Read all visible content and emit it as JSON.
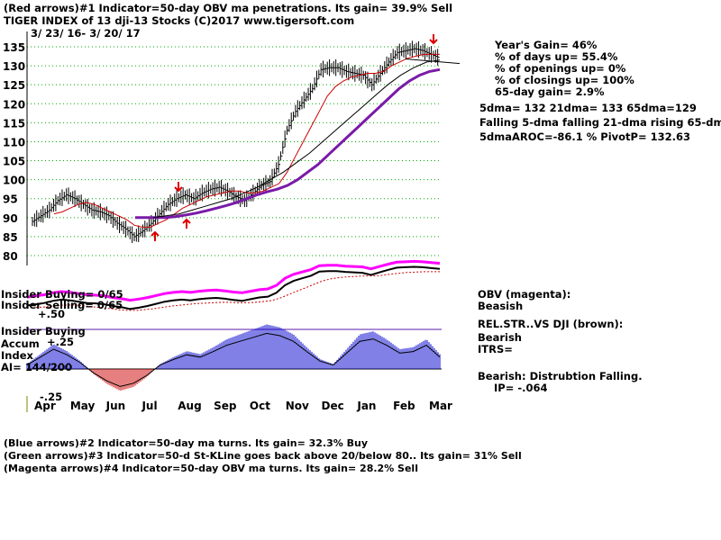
{
  "header": {
    "line1": "(Red arrows)#1 Indicator=50-day OBV ma penetrations. Its gain= 39.9% Sell",
    "line2": "TIGER INDEX of  13 dji-13 Stocks  (C)2017  www.tigersoft.com",
    "date_range": "3/ 23/ 16-  3/ 20/ 17"
  },
  "stats": {
    "years_gain": "Year's Gain= 46%",
    "days_up": "% of days up= 55.4%",
    "openings_up": "% of openings up= 0%",
    "closings_up": "% of closings up= 100%",
    "gain65": "65-day gain= 2.9%",
    "ma_values": "5dma= 132 21dma= 133 65dma=129",
    "ma_trend": "Falling 5-dma falling 21-dma rising 65-dma",
    "aroc": "5dmaAROC=-86.1 %  PivotP= 132.63"
  },
  "left_labels": {
    "insider_buying": "Insider Buying= 0/65",
    "insider_selling": "Insider Selling= 0/65",
    "plus50": "+.50",
    "insider_buying2": "Insider Buying",
    "accum": "Accum",
    "plus25": "+.25",
    "index": "Index",
    "ai": "AI= 144/200",
    "minus25": "-.25"
  },
  "right_labels": {
    "obv": "OBV (magenta):",
    "obv_status": "Beasish",
    "relstr": "REL.STR..VS DJI (brown):",
    "relstr_status": "Bearish",
    "itrs": "ITRS=",
    "bearish_dist": "Bearish: Distrubtion Falling.",
    "ip": "IP= -.064"
  },
  "footer": {
    "line1": "(Blue arrows)#2 Indicator=50-day ma turns. Its gain= 32.3% Buy",
    "line2": "(Green arrows)#3 Indicator=50-d St-KLine goes back above 20/below 80.. Its gain= 31% Sell",
    "line3": "(Magenta arrows)#4 Indicator=50-day OBV ma turns. Its gain= 28.2% Sell"
  },
  "colors": {
    "price": "#000000",
    "ma21": "#cc0000",
    "ma65": "#7a1aa8",
    "obv": "#ff00ff",
    "relstr": "#000000",
    "accum_pos": "#0000cc",
    "accum_neg": "#cc0000",
    "grid": "#00aa00",
    "arrow": "#dd0000"
  },
  "chart_data": {
    "type": "line",
    "y_ticks": [
      135,
      130,
      125,
      120,
      115,
      110,
      105,
      100,
      95,
      90,
      85,
      80
    ],
    "ylim": [
      80,
      135
    ],
    "x_labels": [
      "Apr",
      "May",
      "Jun",
      "Jul",
      "Aug",
      "Sep",
      "Oct",
      "Nov",
      "Dec",
      "Jan",
      "Feb",
      "Mar"
    ],
    "x_index": [
      0,
      1,
      2,
      3,
      4,
      5,
      6,
      7,
      8,
      9,
      10,
      11,
      12,
      13,
      14,
      15,
      16,
      17,
      18,
      19,
      20,
      21,
      22,
      23,
      24,
      25,
      26,
      27,
      28,
      29,
      30,
      31,
      32,
      33,
      34,
      35,
      36,
      37,
      38,
      39,
      40,
      41,
      42,
      43,
      44,
      45,
      46,
      47,
      48
    ],
    "series": [
      {
        "values": [
          89,
          90.5,
          92,
          94.5,
          96,
          95,
          93.5,
          92,
          91.5,
          90.5,
          88.5,
          87,
          85,
          86.5,
          88.5,
          91,
          93.5,
          95,
          96,
          95,
          96.5,
          97.5,
          98,
          97,
          95.5,
          94.5,
          96.5,
          98.5,
          99.5,
          104,
          113,
          118,
          121,
          124,
          129,
          129.5,
          129.5,
          128.5,
          128,
          127.5,
          125,
          128,
          131,
          133.5,
          134,
          134.5,
          134,
          133,
          132
        ]
      },
      {
        "values": [
          91,
          91.5,
          92.5,
          93.5,
          94,
          93.5,
          92.5,
          91.5,
          90.5,
          89.5,
          88,
          87.5,
          87.5,
          88.5,
          89.5,
          91,
          92.5,
          93.5,
          94.5,
          95.5,
          96,
          96.5,
          97,
          97,
          96.5,
          96.5,
          97,
          98,
          99,
          102,
          106,
          110,
          114,
          118,
          122,
          124.5,
          126,
          127,
          127.5,
          128,
          128,
          128.5,
          130,
          131,
          132,
          132.5,
          133,
          133,
          133
        ]
      },
      {
        "values": [
          90,
          90,
          90,
          90,
          90.3,
          90.7,
          91.2,
          91.8,
          92.5,
          93.2,
          94,
          95,
          96,
          96.8,
          97.5,
          98.5,
          100,
          102,
          104,
          106.5,
          109,
          111.5,
          114,
          116.5,
          119,
          121.5,
          124,
          126,
          127.5,
          128.5,
          129
        ]
      },
      {
        "values": [
          90,
          90.5,
          91,
          92,
          93,
          94,
          95,
          96.5,
          98,
          100,
          102,
          104.5,
          107,
          110,
          113,
          116,
          119,
          122,
          125,
          127.5,
          129.5,
          131,
          131.5
        ]
      },
      {
        "values": [
          0.05,
          0.15,
          0.25,
          0.18,
          0.08,
          -0.05,
          -0.15,
          -0.22,
          -0.18,
          -0.08,
          0.05,
          0.12,
          0.18,
          0.15,
          0.22,
          0.3,
          0.35,
          0.4,
          0.45,
          0.42,
          0.35,
          0.22,
          0.1,
          0.05,
          0.2,
          0.35,
          0.38,
          0.3,
          0.2,
          0.22,
          0.3,
          0.15
        ]
      }
    ]
  }
}
